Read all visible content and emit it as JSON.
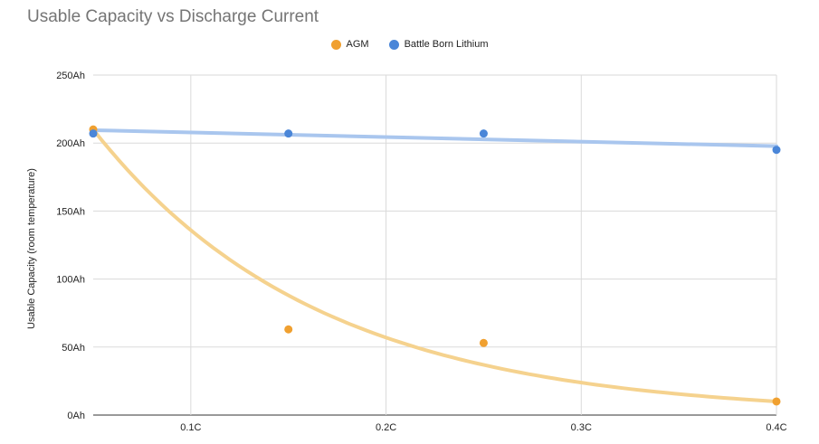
{
  "title": "Usable Capacity vs Discharge Current",
  "colors": {
    "agm": "#F0A030",
    "lithium": "#4A86D8",
    "agm_trend": "#F5D28E",
    "lithium_trend": "#A9C6EE",
    "grid": "#DADADA"
  },
  "chart_data": {
    "type": "scatter",
    "title": "Usable Capacity vs Discharge Current",
    "xlabel": "",
    "ylabel": "Usable Capacity (room temperature)",
    "xlim": [
      0.05,
      0.4
    ],
    "ylim": [
      0,
      250
    ],
    "x_ticks": [
      0.1,
      0.2,
      0.3,
      0.4
    ],
    "x_tick_labels": [
      "0.1C",
      "0.2C",
      "0.3C",
      "0.4C"
    ],
    "y_ticks": [
      0,
      50,
      100,
      150,
      200,
      250
    ],
    "y_tick_labels": [
      "0Ah",
      "50Ah",
      "100Ah",
      "150Ah",
      "200Ah",
      "250Ah"
    ],
    "grid": true,
    "legend_position": "top",
    "series": [
      {
        "name": "AGM",
        "x": [
          0.05,
          0.15,
          0.25,
          0.4
        ],
        "y": [
          210,
          63,
          53,
          10
        ],
        "trendline": "exponential"
      },
      {
        "name": "Battle Born Lithium",
        "x": [
          0.05,
          0.15,
          0.25,
          0.4
        ],
        "y": [
          207,
          207,
          207,
          195
        ],
        "trendline": "linear"
      }
    ]
  }
}
